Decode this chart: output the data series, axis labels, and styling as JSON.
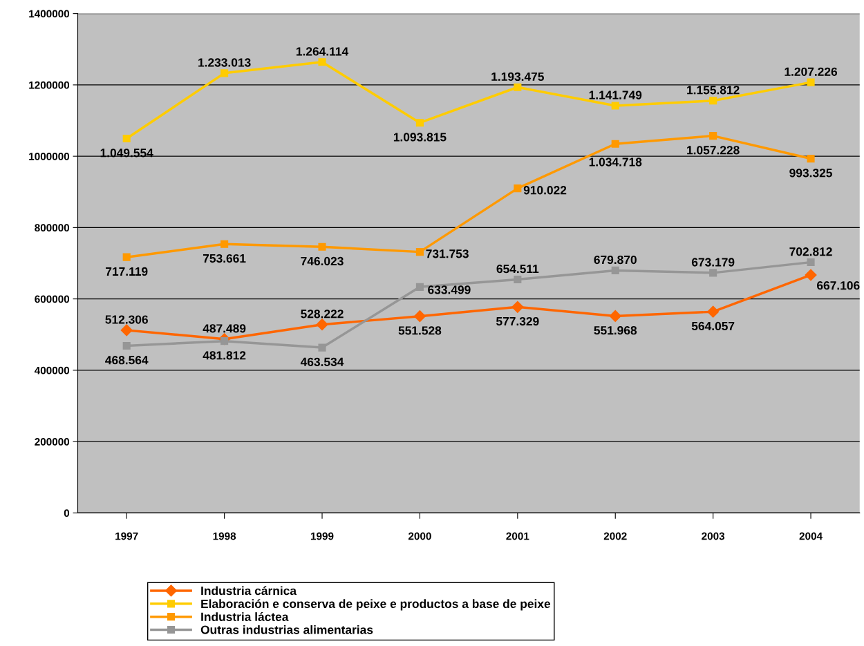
{
  "chart_data": {
    "type": "line",
    "categories": [
      "1997",
      "1998",
      "1999",
      "2000",
      "2001",
      "2002",
      "2003",
      "2004"
    ],
    "ylim": [
      0,
      1400000
    ],
    "yticks": [
      0,
      200000,
      400000,
      600000,
      800000,
      1000000,
      1200000,
      1400000
    ],
    "grid": "y",
    "legend": "bottom",
    "series": [
      {
        "name": "Industria cárnica",
        "color": "#ff6600",
        "marker": "diamond",
        "values": [
          512306,
          487489,
          528222,
          551528,
          577329,
          551968,
          564057,
          667106
        ],
        "value_labels": [
          "512.306",
          "487.489",
          "528.222",
          "551.528",
          "577.329",
          "551.968",
          "564.057",
          "667.106"
        ]
      },
      {
        "name": "Elaboración e conserva de peixe e productos a base de peixe",
        "color": "#ffcc00",
        "marker": "square",
        "values": [
          1049554,
          1233013,
          1264114,
          1093815,
          1193475,
          1141749,
          1155812,
          1207226
        ],
        "value_labels": [
          "1.049.554",
          "1.233.013",
          "1.264.114",
          "1.093.815",
          "1.193.475",
          "1.141.749",
          "1.155.812",
          "1.207.226"
        ]
      },
      {
        "name": "Industria láctea",
        "color": "#ff9900",
        "marker": "square",
        "values": [
          717119,
          753661,
          746023,
          731753,
          910022,
          1034718,
          1057228,
          993325
        ],
        "value_labels": [
          "717.119",
          "753.661",
          "746.023",
          "731.753",
          "910.022",
          "1.034.718",
          "1.057.228",
          "993.325"
        ]
      },
      {
        "name": "Outras industrias alimentarias",
        "color": "#969696",
        "marker": "square",
        "values": [
          468564,
          481812,
          463534,
          633499,
          654511,
          679870,
          673179,
          702812
        ],
        "value_labels": [
          "468.564",
          "481.812",
          "463.534",
          "633.499",
          "654.511",
          "679.870",
          "673.179",
          "702.812"
        ]
      }
    ]
  }
}
